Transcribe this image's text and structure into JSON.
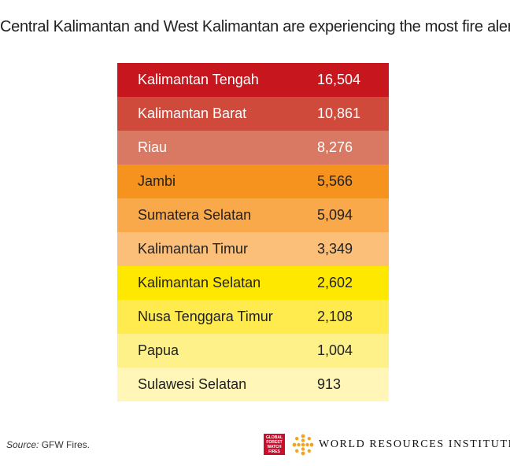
{
  "chart_data": {
    "type": "table",
    "title": "Central Kalimantan and West Kalimantan are experiencing the most fire alerts",
    "rows": [
      {
        "label": "Kalimantan Tengah",
        "value": "16,504",
        "bg": "#c8161e",
        "fg": "#ffffff"
      },
      {
        "label": "Kalimantan Barat",
        "value": "10,861",
        "bg": "#d04a3b",
        "fg": "#ffffff"
      },
      {
        "label": "Riau",
        "value": "8,276",
        "bg": "#d97964",
        "fg": "#ffffff"
      },
      {
        "label": "Jambi",
        "value": "5,566",
        "bg": "#f6921e",
        "fg": "#222222"
      },
      {
        "label": "Sumatera Selatan",
        "value": "5,094",
        "bg": "#f9a94a",
        "fg": "#222222"
      },
      {
        "label": "Kalimantan Timur",
        "value": "3,349",
        "bg": "#fbbf7a",
        "fg": "#222222"
      },
      {
        "label": "Kalimantan Selatan",
        "value": "2,602",
        "bg": "#ffe800",
        "fg": "#222222"
      },
      {
        "label": "Nusa Tenggara Timur",
        "value": "2,108",
        "bg": "#ffeb4d",
        "fg": "#222222"
      },
      {
        "label": "Papua",
        "value": "1,004",
        "bg": "#fff18a",
        "fg": "#222222"
      },
      {
        "label": "Sulawesi Selatan",
        "value": "913",
        "bg": "#fff6b8",
        "fg": "#222222"
      }
    ]
  },
  "footer": {
    "source_label": "Source:",
    "source_text": " GFW Fires.",
    "gfw_logo_lines": [
      "GLOBAL",
      "FOREST",
      "WATCH",
      "FIRES"
    ],
    "org_name": "WORLD RESOURCES INSTITUTE",
    "icons": {
      "gfw": "gfw-fires-logo-icon",
      "wri": "wri-star-logo-icon"
    }
  }
}
